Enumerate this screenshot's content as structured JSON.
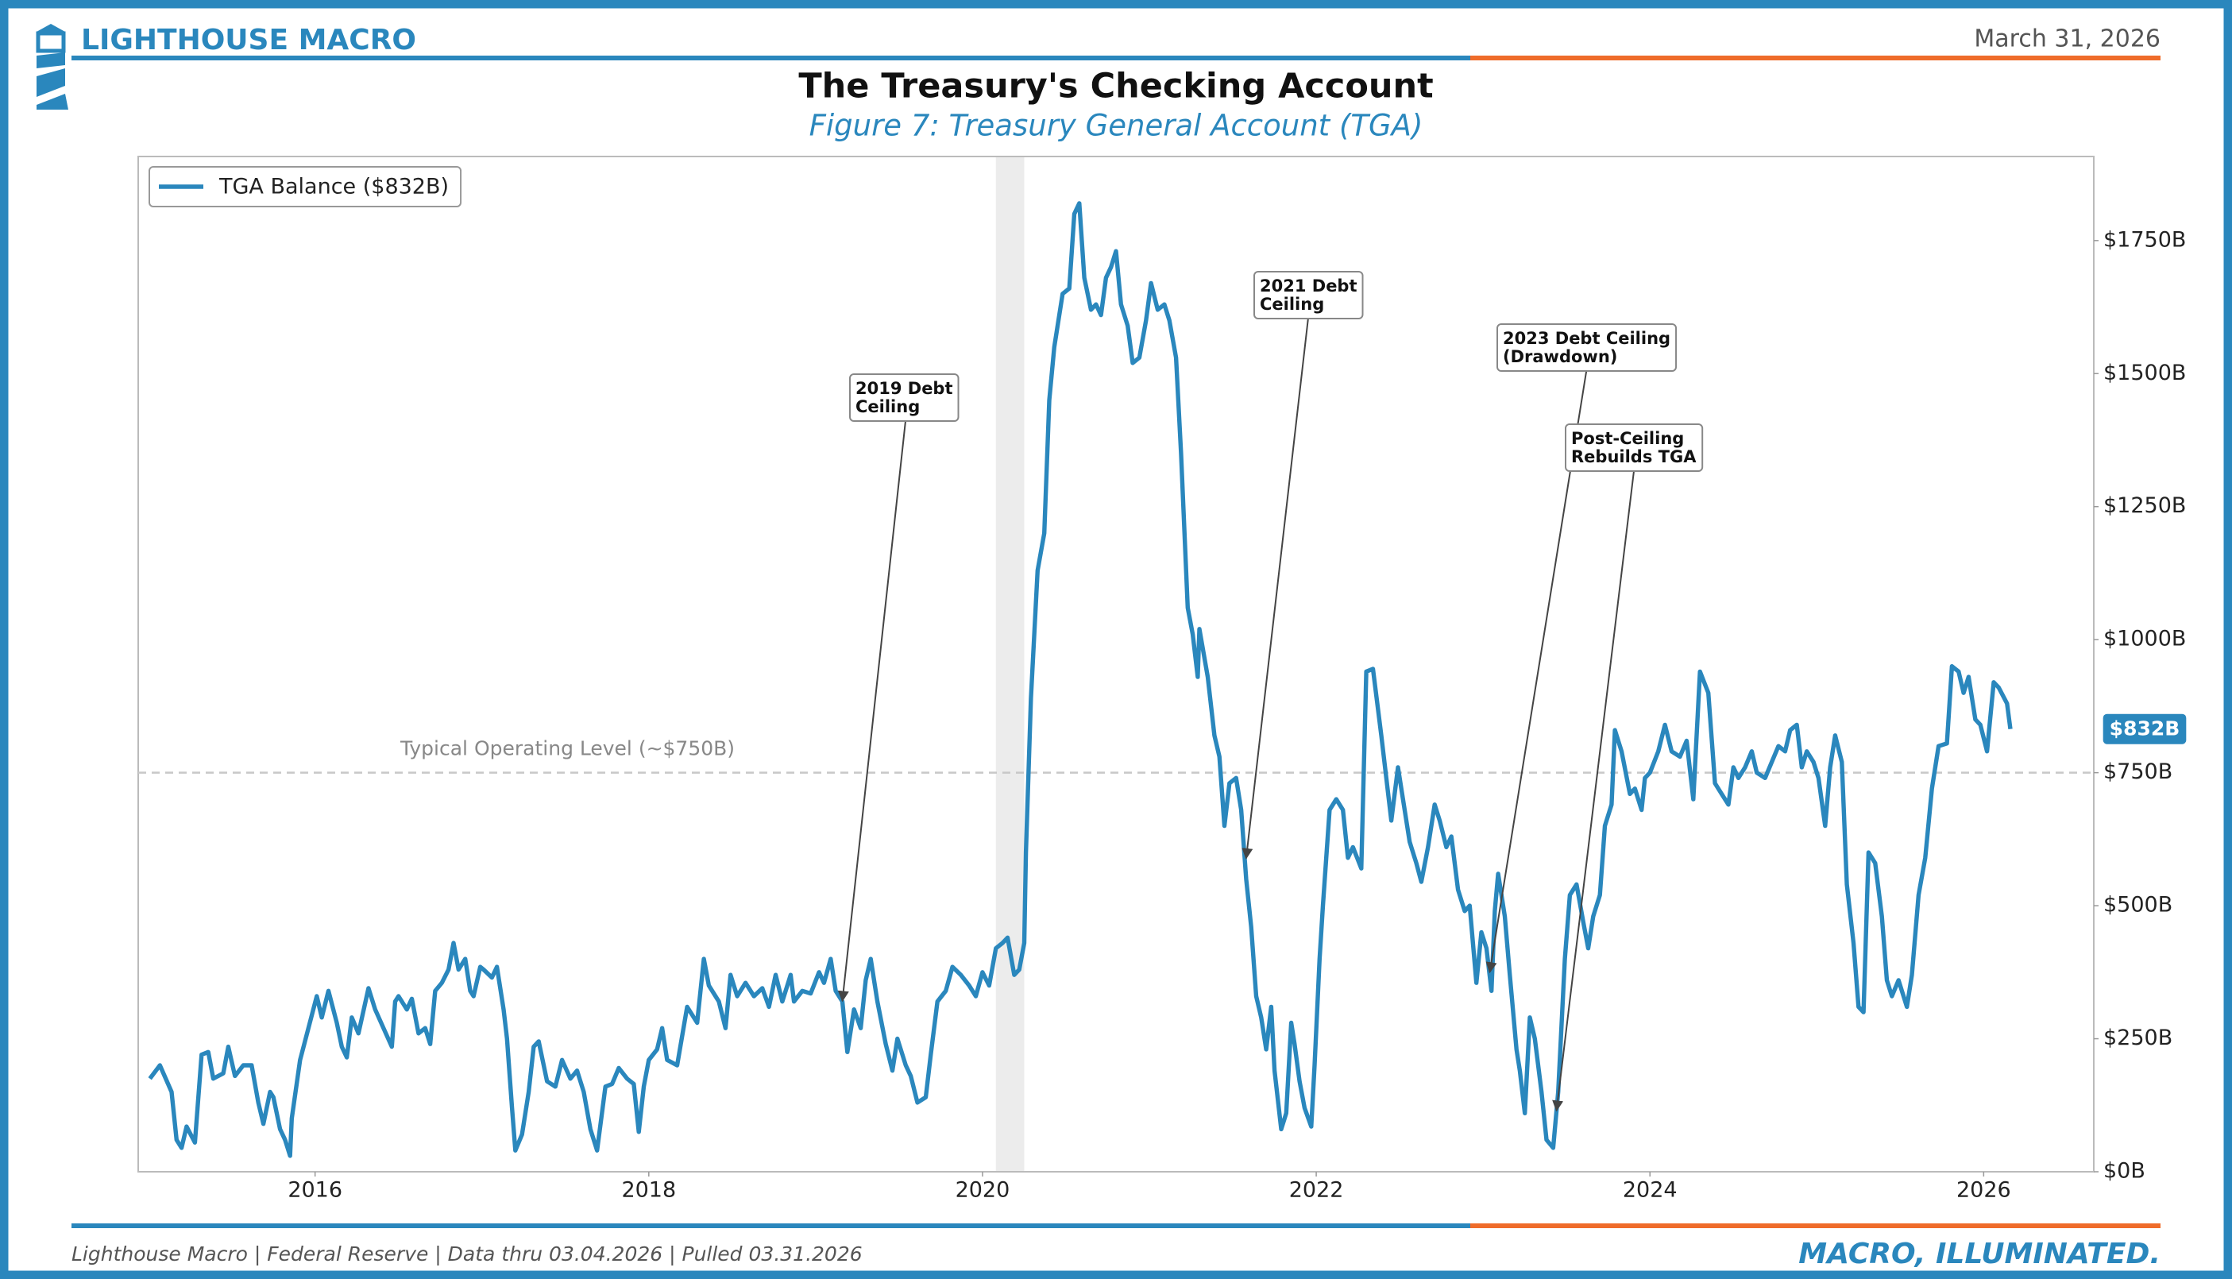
{
  "header": {
    "brand": "LIGHTHOUSE MACRO",
    "date": "March 31, 2026"
  },
  "footer": {
    "source": "Lighthouse Macro | Federal Reserve | Data thru 03.04.2026 | Pulled 03.31.2026",
    "tagline": "MACRO, ILLUMINATED."
  },
  "chart_data": {
    "type": "line",
    "title": "The Treasury's Checking Account",
    "subtitle": "Figure 7: Treasury General Account (TGA)",
    "xlim": [
      2014.94,
      2026.66
    ],
    "xticks": [
      2016,
      2018,
      2020,
      2022,
      2024,
      2026
    ],
    "ylim": [
      0,
      1908
    ],
    "yticks": [
      {
        "value": 0,
        "label": "$0B"
      },
      {
        "value": 250,
        "label": "$250B"
      },
      {
        "value": 500,
        "label": "$500B"
      },
      {
        "value": 750,
        "label": "$750B"
      },
      {
        "value": 1000,
        "label": "$1000B"
      },
      {
        "value": 1250,
        "label": "$1250B"
      },
      {
        "value": 1500,
        "label": "$1500B"
      },
      {
        "value": 1750,
        "label": "$1750B"
      }
    ],
    "grid": false,
    "legend": "upper left",
    "shaded": [
      2020.08,
      2020.25
    ],
    "reference_line": {
      "value": 750,
      "label": "Typical Operating Level (~$750B)"
    },
    "end_label": {
      "value": 832,
      "label": "$832B"
    },
    "annotations": [
      {
        "text": [
          "2019 Debt",
          "Ceiling"
        ],
        "x": 2019.16,
        "y": 321
      },
      {
        "text": [
          "2021 Debt",
          "Ceiling"
        ],
        "x": 2021.58,
        "y": 589
      },
      {
        "text": [
          "2023 Debt Ceiling",
          "(Drawdown)"
        ],
        "x": 2023.04,
        "y": 375
      },
      {
        "text": [
          "Post-Ceiling",
          "Rebuilds TGA"
        ],
        "x": 2023.44,
        "y": 115
      }
    ],
    "x": [
      2015.01,
      2015.07,
      2015.14,
      2015.17,
      2015.2,
      2015.23,
      2015.28,
      2015.32,
      2015.36,
      2015.39,
      2015.45,
      2015.48,
      2015.52,
      2015.57,
      2015.62,
      2015.66,
      2015.69,
      2015.73,
      2015.75,
      2015.79,
      2015.82,
      2015.85,
      2015.86,
      2015.91,
      2015.96,
      2016.01,
      2016.04,
      2016.08,
      2016.13,
      2016.16,
      2016.19,
      2016.22,
      2016.26,
      2016.32,
      2016.36,
      2016.41,
      2016.46,
      2016.48,
      2016.5,
      2016.55,
      2016.58,
      2016.62,
      2016.66,
      2016.69,
      2016.72,
      2016.76,
      2016.8,
      2016.83,
      2016.86,
      2016.9,
      2016.93,
      2016.95,
      2016.99,
      2017.01,
      2017.06,
      2017.09,
      2017.13,
      2017.15,
      2017.18,
      2017.2,
      2017.24,
      2017.28,
      2017.31,
      2017.34,
      2017.39,
      2017.44,
      2017.48,
      2017.53,
      2017.57,
      2017.61,
      2017.65,
      2017.69,
      2017.74,
      2017.78,
      2017.82,
      2017.87,
      2017.91,
      2017.94,
      2017.97,
      2018.0,
      2018.05,
      2018.08,
      2018.11,
      2018.17,
      2018.23,
      2018.29,
      2018.33,
      2018.36,
      2018.42,
      2018.46,
      2018.49,
      2018.53,
      2018.58,
      2018.63,
      2018.68,
      2018.72,
      2018.76,
      2018.8,
      2018.85,
      2018.87,
      2018.92,
      2018.97,
      2019.02,
      2019.05,
      2019.09,
      2019.12,
      2019.16,
      2019.19,
      2019.23,
      2019.27,
      2019.3,
      2019.33,
      2019.37,
      2019.42,
      2019.46,
      2019.49,
      2019.54,
      2019.57,
      2019.61,
      2019.66,
      2019.69,
      2019.73,
      2019.78,
      2019.82,
      2019.87,
      2019.92,
      2019.96,
      2020.0,
      2020.04,
      2020.08,
      2020.12,
      2020.15,
      2020.19,
      2020.22,
      2020.25,
      2020.26,
      2020.29,
      2020.33,
      2020.37,
      2020.4,
      2020.43,
      2020.48,
      2020.52,
      2020.55,
      2020.58,
      2020.61,
      2020.65,
      2020.68,
      2020.71,
      2020.74,
      2020.77,
      2020.8,
      2020.83,
      2020.87,
      2020.9,
      2020.94,
      2020.98,
      2021.01,
      2021.05,
      2021.09,
      2021.12,
      2021.16,
      2021.19,
      2021.23,
      2021.26,
      2021.29,
      2021.3,
      2021.35,
      2021.39,
      2021.42,
      2021.45,
      2021.48,
      2021.52,
      2021.55,
      2021.58,
      2021.61,
      2021.64,
      2021.67,
      2021.7,
      2021.73,
      2021.75,
      2021.79,
      2021.82,
      2021.85,
      2021.87,
      2021.9,
      2021.93,
      2021.97,
      2021.99,
      2022.02,
      2022.04,
      2022.08,
      2022.12,
      2022.16,
      2022.19,
      2022.22,
      2022.27,
      2022.3,
      2022.34,
      2022.39,
      2022.42,
      2022.45,
      2022.49,
      2022.52,
      2022.56,
      2022.6,
      2022.63,
      2022.67,
      2022.71,
      2022.74,
      2022.78,
      2022.81,
      2022.85,
      2022.89,
      2022.92,
      2022.96,
      2022.99,
      2023.02,
      2023.05,
      2023.07,
      2023.09,
      2023.13,
      2023.16,
      2023.2,
      2023.22,
      2023.25,
      2023.28,
      2023.31,
      2023.35,
      2023.38,
      2023.42,
      2023.45,
      2023.49,
      2023.52,
      2023.56,
      2023.6,
      2023.63,
      2023.66,
      2023.7,
      2023.73,
      2023.77,
      2023.79,
      2023.83,
      2023.88,
      2023.91,
      2023.95,
      2023.97,
      2024.0,
      2024.05,
      2024.09,
      2024.13,
      2024.18,
      2024.22,
      2024.26,
      2024.3,
      2024.35,
      2024.39,
      2024.43,
      2024.47,
      2024.5,
      2024.53,
      2024.57,
      2024.61,
      2024.64,
      2024.69,
      2024.73,
      2024.77,
      2024.81,
      2024.84,
      2024.88,
      2024.91,
      2024.94,
      2024.98,
      2025.01,
      2025.05,
      2025.08,
      2025.11,
      2025.15,
      2025.18,
      2025.22,
      2025.25,
      2025.28,
      2025.31,
      2025.35,
      2025.39,
      2025.42,
      2025.45,
      2025.49,
      2025.54,
      2025.57,
      2025.61,
      2025.65,
      2025.69,
      2025.73,
      2025.78,
      2025.81,
      2025.85,
      2025.88,
      2025.91,
      2025.95,
      2025.98,
      2026.02,
      2026.06,
      2026.09,
      2026.14,
      2026.16
    ],
    "series": [
      {
        "name": "TGA Balance ($832B)",
        "color": "#2a87bd",
        "values": [
          175,
          200,
          150,
          60,
          45,
          85,
          55,
          220,
          225,
          175,
          185,
          235,
          180,
          200,
          200,
          130,
          90,
          150,
          140,
          80,
          60,
          30,
          100,
          210,
          270,
          330,
          290,
          340,
          280,
          235,
          215,
          290,
          260,
          345,
          305,
          270,
          235,
          320,
          330,
          305,
          325,
          260,
          270,
          240,
          340,
          355,
          380,
          430,
          380,
          400,
          340,
          330,
          385,
          380,
          365,
          385,
          305,
          250,
          120,
          40,
          70,
          150,
          235,
          245,
          170,
          160,
          210,
          175,
          190,
          150,
          80,
          40,
          160,
          165,
          195,
          175,
          165,
          75,
          160,
          210,
          230,
          270,
          210,
          200,
          310,
          280,
          400,
          350,
          320,
          270,
          370,
          330,
          355,
          330,
          345,
          310,
          370,
          320,
          370,
          320,
          340,
          335,
          375,
          355,
          400,
          340,
          320,
          225,
          305,
          270,
          360,
          400,
          320,
          240,
          190,
          250,
          200,
          180,
          130,
          140,
          220,
          320,
          340,
          385,
          370,
          350,
          330,
          375,
          350,
          420,
          430,
          440,
          370,
          380,
          430,
          600,
          890,
          1130,
          1200,
          1450,
          1550,
          1650,
          1660,
          1800,
          1820,
          1680,
          1620,
          1630,
          1610,
          1680,
          1700,
          1730,
          1630,
          1590,
          1520,
          1530,
          1600,
          1670,
          1620,
          1630,
          1600,
          1530,
          1350,
          1060,
          1010,
          930,
          1020,
          930,
          820,
          780,
          650,
          730,
          740,
          680,
          550,
          460,
          330,
          290,
          230,
          310,
          190,
          80,
          110,
          280,
          240,
          170,
          120,
          85,
          200,
          400,
          500,
          680,
          700,
          680,
          590,
          610,
          570,
          940,
          945,
          820,
          740,
          660,
          760,
          700,
          620,
          580,
          545,
          610,
          690,
          660,
          610,
          630,
          530,
          490,
          500,
          355,
          450,
          420,
          340,
          490,
          560,
          480,
          370,
          230,
          190,
          110,
          290,
          250,
          150,
          60,
          45,
          150,
          400,
          520,
          540,
          470,
          420,
          480,
          520,
          650,
          690,
          830,
          790,
          710,
          720,
          680,
          740,
          750,
          790,
          840,
          790,
          780,
          810,
          700,
          940,
          900,
          730,
          710,
          690,
          760,
          740,
          760,
          790,
          750,
          740,
          770,
          800,
          790,
          830,
          840,
          760,
          790,
          770,
          740,
          650,
          760,
          820,
          770,
          540,
          430,
          310,
          300,
          600,
          580,
          480,
          360,
          330,
          360,
          310,
          370,
          520,
          590,
          720,
          800,
          805,
          950,
          940,
          900,
          930,
          850,
          840,
          790,
          920,
          910,
          880,
          832
        ]
      }
    ]
  }
}
